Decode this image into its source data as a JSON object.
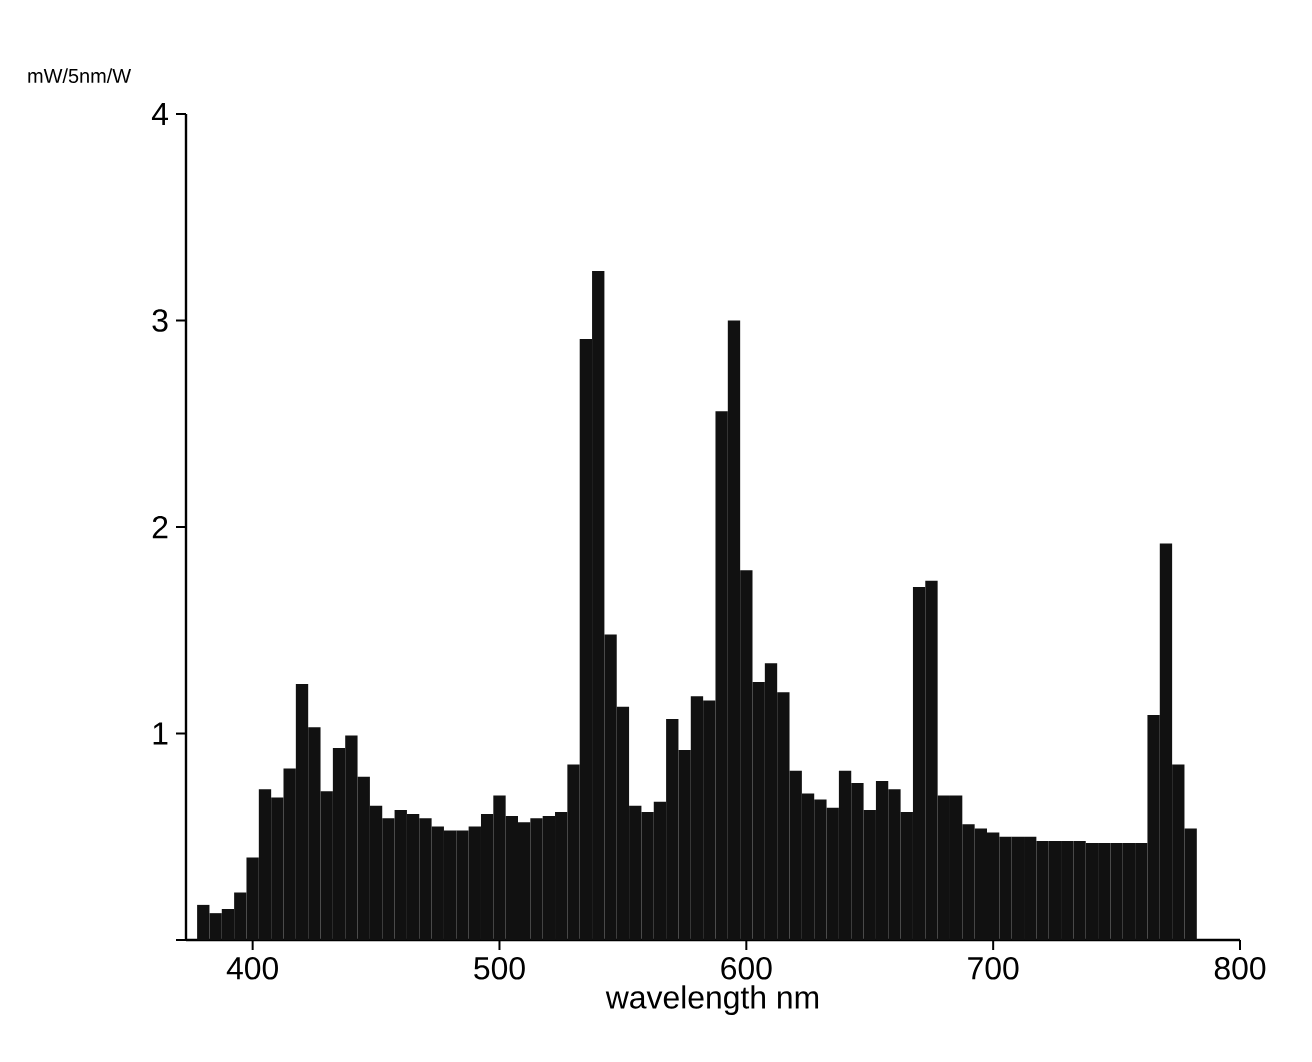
{
  "chart_data": {
    "type": "histogram",
    "xlabel": "wavelength nm",
    "ylabel": "mW/5nm/W",
    "bins": [
      377.5,
      382.5,
      387.5,
      392.5,
      397.5,
      402.5,
      407.5,
      412.5,
      417.5,
      422.5,
      427.5,
      432.5,
      437.5,
      442.5,
      447.5,
      452.5,
      457.5,
      462.5,
      467.5,
      472.5,
      477.5,
      482.5,
      487.5,
      492.5,
      497.5,
      502.5,
      507.5,
      512.5,
      517.5,
      522.5,
      527.5,
      532.5,
      537.5,
      542.5,
      547.5,
      552.5,
      557.5,
      562.5,
      567.5,
      572.5,
      577.5,
      582.5,
      587.5,
      592.5,
      597.5,
      602.5,
      607.5,
      612.5,
      617.5,
      622.5,
      627.5,
      632.5,
      637.5,
      642.5,
      647.5,
      652.5,
      657.5,
      662.5,
      667.5,
      672.5,
      677.5,
      682.5,
      687.5,
      692.5,
      697.5,
      702.5,
      707.5,
      712.5,
      717.5,
      722.5,
      727.5,
      732.5,
      737.5,
      742.5,
      747.5,
      752.5,
      757.5,
      762.5,
      767.5,
      772.5,
      777.5,
      782.5
    ],
    "values": [
      0.17,
      0.13,
      0.15,
      0.23,
      0.4,
      0.73,
      0.69,
      0.83,
      1.24,
      1.03,
      0.72,
      0.93,
      0.99,
      0.79,
      0.65,
      0.59,
      0.63,
      0.61,
      0.59,
      0.55,
      0.53,
      0.53,
      0.55,
      0.61,
      0.7,
      0.6,
      0.57,
      0.59,
      0.6,
      0.62,
      0.85,
      2.91,
      3.24,
      1.48,
      1.13,
      0.65,
      0.62,
      0.67,
      1.07,
      0.92,
      1.18,
      1.16,
      2.56,
      3.0,
      1.79,
      1.25,
      1.34,
      1.2,
      0.82,
      0.71,
      0.68,
      0.64,
      0.82,
      0.76,
      0.63,
      0.77,
      0.73,
      0.62,
      1.71,
      1.74,
      0.7,
      0.7,
      0.56,
      0.54,
      0.52,
      0.5,
      0.5,
      0.5,
      0.48,
      0.48,
      0.48,
      0.48,
      0.47,
      0.47,
      0.47,
      0.47,
      0.47,
      1.09,
      1.92,
      0.85,
      0.54
    ],
    "color": "#111111",
    "xlim": [
      373,
      800
    ],
    "xticks": [
      400,
      500,
      600,
      700,
      800
    ],
    "ylim": [
      0,
      4
    ],
    "yticks": [
      {
        "value": 0,
        "label": null
      },
      1,
      2,
      3,
      4
    ]
  }
}
